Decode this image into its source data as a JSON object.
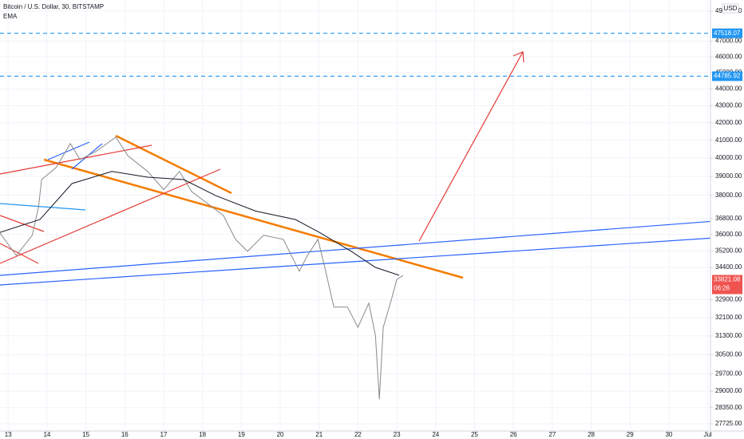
{
  "chart_data": {
    "type": "line",
    "title": "Bitcoin / U.S. Dollar, 30, BITSTAMP",
    "indicator": "EMA",
    "currency": "USD",
    "log_scale": true,
    "grid": true,
    "xlim": [
      12.79,
      31.07
    ],
    "xticks": [
      13,
      14,
      15,
      16,
      17,
      18,
      19,
      20,
      21,
      22,
      23,
      24,
      25,
      26,
      27,
      28,
      29,
      30,
      {
        "value": 31,
        "label": "Jul"
      }
    ],
    "ylim": [
      27450,
      49750
    ],
    "yticks": [
      {
        "value": 49000,
        "label": "49000.00"
      },
      {
        "value": 47000,
        "label": "47000.00"
      },
      {
        "value": 46000,
        "label": "46000.00"
      },
      {
        "value": 45000,
        "label": "45000.00"
      },
      {
        "value": 44000,
        "label": "44000.00"
      },
      {
        "value": 43000,
        "label": "43000.00"
      },
      {
        "value": 42000,
        "label": "42000.00"
      },
      {
        "value": 41000,
        "label": "41000.00"
      },
      {
        "value": 40000,
        "label": "40000.00"
      },
      {
        "value": 39000,
        "label": "39000.00"
      },
      {
        "value": 38000,
        "label": "38000.00"
      },
      {
        "value": 36800,
        "label": "36800.00"
      },
      {
        "value": 36000,
        "label": "36000.00"
      },
      {
        "value": 35200,
        "label": "35200.00"
      },
      {
        "value": 34400,
        "label": "34400.00"
      },
      {
        "value": 32900,
        "label": "32900.00"
      },
      {
        "value": 32100,
        "label": "32100.00"
      },
      {
        "value": 31300,
        "label": "31300.00"
      },
      {
        "value": 30500,
        "label": "30500.00"
      },
      {
        "value": 29700,
        "label": "29700.00"
      },
      {
        "value": 29000,
        "label": "29000.00"
      },
      {
        "value": 28350,
        "label": "28350.00"
      },
      {
        "value": 27725,
        "label": "27725.00"
      }
    ],
    "series": [
      {
        "color": "#8a8a8a",
        "x": [
          12.79,
          13.21,
          13.62,
          13.78,
          13.86,
          14.23,
          14.6,
          14.85,
          15.26,
          15.77,
          16.08,
          16.59,
          17.0,
          17.41,
          17.72,
          18.13,
          18.54,
          18.85,
          19.16,
          19.57,
          20.08,
          20.49,
          20.7,
          20.97,
          21.17,
          21.38,
          21.73,
          22.0,
          22.28,
          22.45,
          22.55,
          22.65,
          22.86,
          23.0,
          23.16
        ],
        "values": [
          36070,
          34970,
          35960,
          37370,
          38830,
          39480,
          40810,
          39920,
          40370,
          41180,
          40130,
          39270,
          38300,
          39270,
          38200,
          37570,
          36950,
          35760,
          35170,
          35960,
          35760,
          34220,
          34970,
          35760,
          34220,
          32570,
          32570,
          31670,
          32750,
          31320,
          28680,
          31670,
          32910,
          33830,
          34030
        ]
      },
      {
        "name": "EMA",
        "color": "#131722",
        "x": [
          12.79,
          13.82,
          14.64,
          15.67,
          16.59,
          17.52,
          18.34,
          19.37,
          20.39,
          21.01,
          21.83,
          22.45,
          23.06
        ],
        "values": [
          36100,
          36750,
          38620,
          39270,
          38960,
          38830,
          37980,
          37180,
          36750,
          36100,
          35170,
          34400,
          34030
        ]
      }
    ],
    "price_lines": [
      {
        "value": 47518.07,
        "color": "#2196f3"
      },
      {
        "value": 44785.92,
        "color": "#2196f3"
      }
    ],
    "last_price": {
      "value": 33821.08,
      "countdown": "06:26",
      "color": "#ef5350"
    }
  }
}
